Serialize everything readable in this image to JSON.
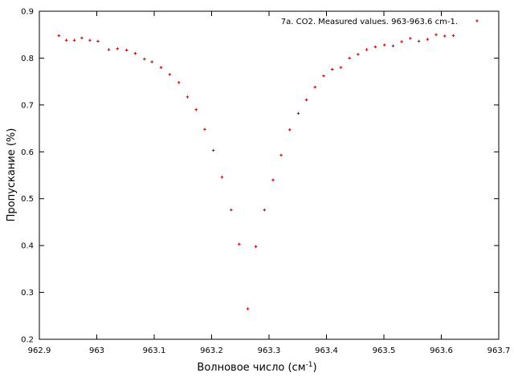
{
  "chart_data": {
    "type": "scatter",
    "title": "",
    "xlabel": "Волновое число (см",
    "xlabel_sup": "-1",
    "xlabel_close": ")",
    "ylabel": "Пропускание (%)",
    "xlim": [
      962.9,
      963.7
    ],
    "ylim": [
      0.2,
      0.9
    ],
    "x_ticks": [
      962.9,
      963.0,
      963.1,
      963.2,
      963.3,
      963.4,
      963.5,
      963.6,
      963.7
    ],
    "x_tick_labels": [
      "962.9",
      "963",
      "963.1",
      "963.2",
      "963.3",
      "963.4",
      "963.5",
      "963.6",
      "963.7"
    ],
    "y_ticks": [
      0.2,
      0.3,
      0.4,
      0.5,
      0.6,
      0.7,
      0.8,
      0.9
    ],
    "y_tick_labels": [
      "0.2",
      "0.3",
      "0.4",
      "0.5",
      "0.6",
      "0.7",
      "0.8",
      "0.9"
    ],
    "grid": false,
    "legend_position": "top-right",
    "color": "#cc0000",
    "series": [
      {
        "name": "7a. CO2. Measured values. 963-963.6  cm-1.",
        "x": [
          962.934,
          962.947,
          962.961,
          962.974,
          962.988,
          963.002,
          963.021,
          963.036,
          963.052,
          963.067,
          963.083,
          963.096,
          963.112,
          963.127,
          963.143,
          963.158,
          963.173,
          963.188,
          963.203,
          963.218,
          963.234,
          963.248,
          963.263,
          963.277,
          963.292,
          963.307,
          963.321,
          963.336,
          963.351,
          963.365,
          963.38,
          963.395,
          963.41,
          963.425,
          963.44,
          963.455,
          963.47,
          963.485,
          963.501,
          963.516,
          963.531,
          963.546,
          963.561,
          963.576,
          963.591,
          963.606,
          963.621
        ],
        "y": [
          0.848,
          0.838,
          0.838,
          0.843,
          0.838,
          0.836,
          0.818,
          0.82,
          0.817,
          0.81,
          0.798,
          0.792,
          0.78,
          0.765,
          0.748,
          0.717,
          0.69,
          0.648,
          0.603,
          0.546,
          0.476,
          0.403,
          0.265,
          0.398,
          0.476,
          0.54,
          0.593,
          0.647,
          0.682,
          0.711,
          0.738,
          0.762,
          0.776,
          0.78,
          0.8,
          0.808,
          0.818,
          0.824,
          0.828,
          0.826,
          0.835,
          0.842,
          0.836,
          0.84,
          0.85,
          0.847,
          0.848
        ]
      }
    ]
  }
}
